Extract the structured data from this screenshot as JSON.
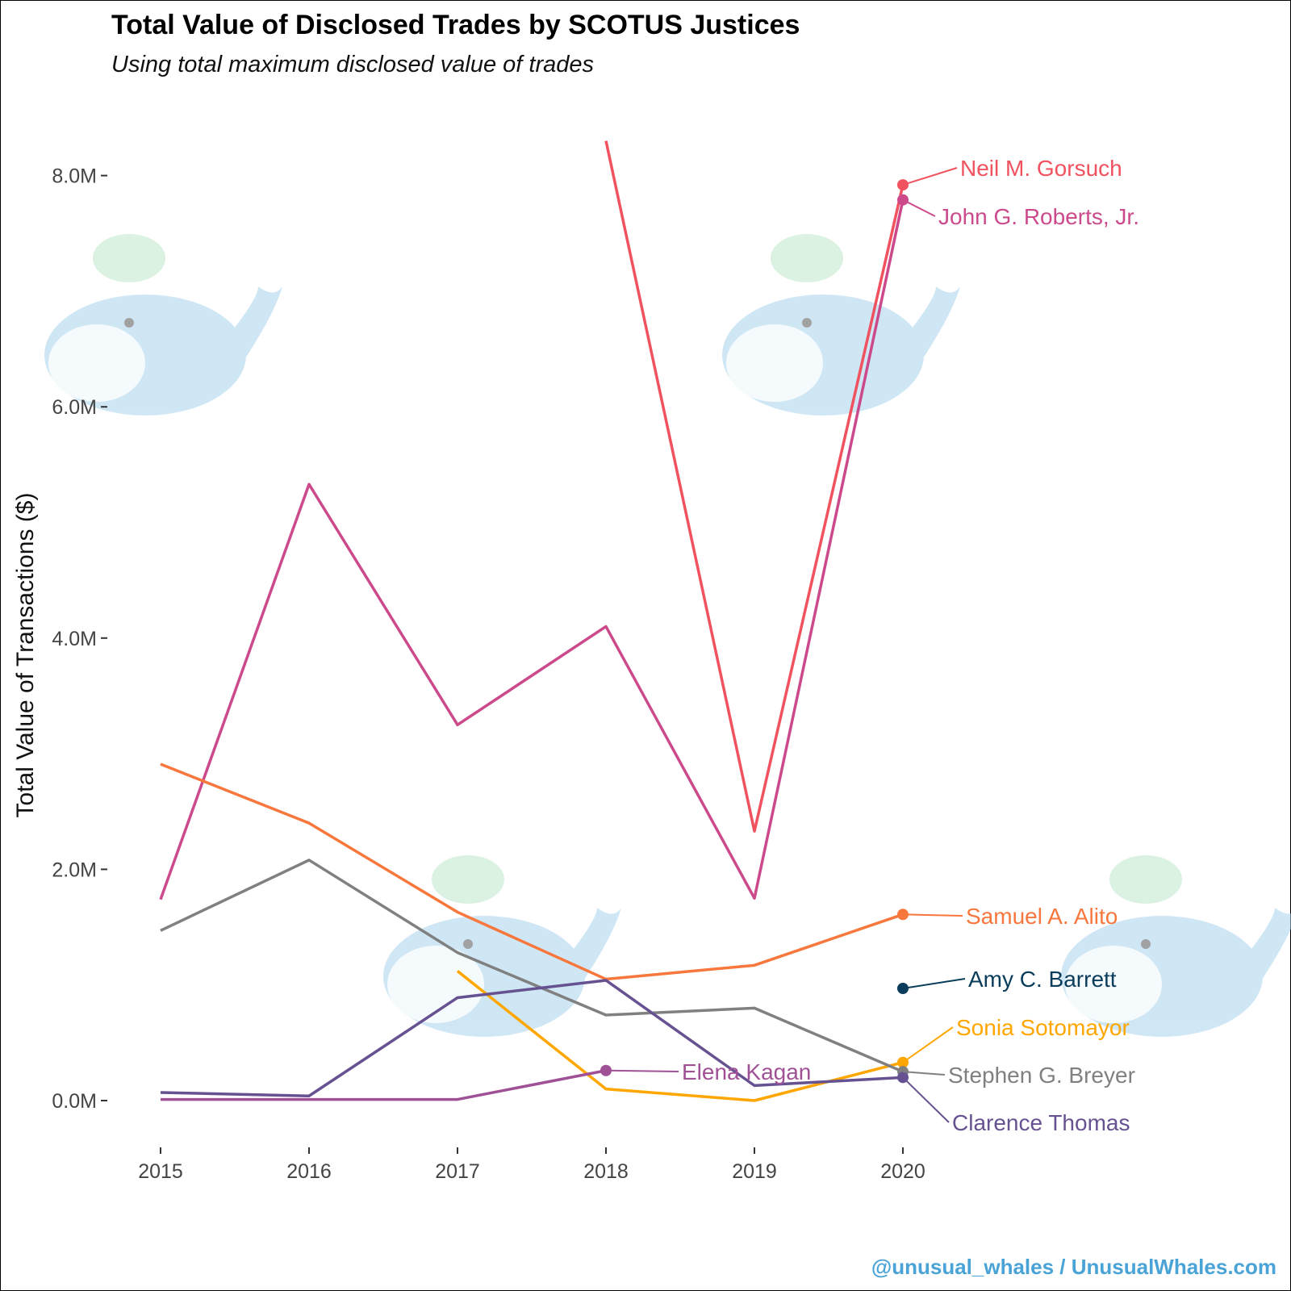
{
  "chart_data": {
    "type": "line",
    "title": "Total Value of Disclosed Trades by SCOTUS Justices",
    "subtitle": "Using total maximum disclosed value of trades",
    "xlabel": "",
    "ylabel": "Total Value of Transactions ($)",
    "x": [
      2015,
      2016,
      2017,
      2018,
      2019,
      2020
    ],
    "x_tick_labels": [
      "2015",
      "2016",
      "2017",
      "2018",
      "2019",
      "2020"
    ],
    "y_ticks": [
      0,
      2,
      4,
      6,
      8
    ],
    "y_tick_labels": [
      "0.0M",
      "2.0M",
      "4.0M",
      "6.0M",
      "8.0M"
    ],
    "ylim": [
      -0.3,
      8.5
    ],
    "units": "millions USD",
    "grid": false,
    "legend": "direct labels at line ends (right)",
    "series": [
      {
        "name": "Neil M. Gorsuch",
        "color": "#f0525f",
        "values": [
          null,
          null,
          null,
          8.3,
          2.33,
          7.92
        ]
      },
      {
        "name": "John G. Roberts, Jr.",
        "color": "#cc4a8b",
        "values": [
          1.74,
          5.33,
          3.25,
          4.1,
          1.75,
          7.79
        ]
      },
      {
        "name": "Samuel A. Alito",
        "color": "#f7773c",
        "values": [
          2.91,
          2.4,
          1.63,
          1.05,
          1.17,
          1.61
        ]
      },
      {
        "name": "Amy C. Barrett",
        "color": "#0a3d5c",
        "values": [
          null,
          null,
          null,
          null,
          null,
          0.97
        ]
      },
      {
        "name": "Sonia Sotomayor",
        "color": "#ffa600",
        "values": [
          null,
          null,
          1.12,
          0.1,
          0.0,
          0.33
        ]
      },
      {
        "name": "Stephen G. Breyer",
        "color": "#808080",
        "values": [
          1.47,
          2.08,
          1.28,
          0.74,
          0.8,
          0.25
        ]
      },
      {
        "name": "Clarence Thomas",
        "color": "#665191",
        "values": [
          0.07,
          0.04,
          0.89,
          1.04,
          0.13,
          0.2
        ]
      },
      {
        "name": "Elena Kagan",
        "color": "#a05195",
        "values": [
          0.01,
          0.01,
          0.01,
          0.26,
          null,
          null
        ]
      }
    ]
  },
  "credit": "@unusual_whales / UnusualWhales.com"
}
